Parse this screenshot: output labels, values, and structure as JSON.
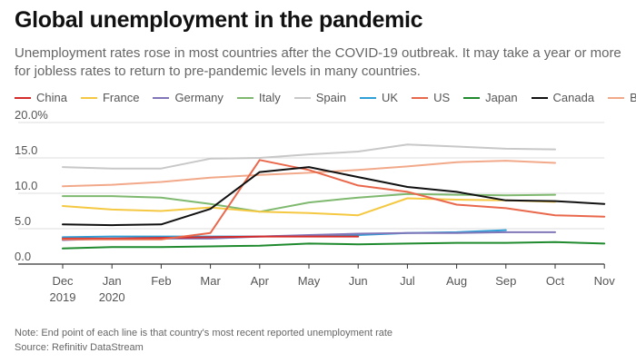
{
  "header": {
    "title": "Global unemployment in the pandemic",
    "subtitle": "Unemployment rates rose in most countries after the COVID-19 outbreak. It may take a year or more for jobless rates to return to pre-pandemic levels in many countries."
  },
  "footer": {
    "note": "Note: End point of each line is that country's most recent reported unemployment rate",
    "source": "Source: Refinitiv DataStream"
  },
  "chart_data": {
    "type": "line",
    "categories": [
      "Dec 2019",
      "Jan 2020",
      "Feb",
      "Mar",
      "Apr",
      "May",
      "Jun",
      "Jul",
      "Aug",
      "Sep",
      "Oct",
      "Nov"
    ],
    "x_tick_labels": [
      [
        "Dec",
        "2019"
      ],
      [
        "Jan",
        "2020"
      ],
      [
        "Feb"
      ],
      [
        "Mar"
      ],
      [
        "Apr"
      ],
      [
        "May"
      ],
      [
        "Jun"
      ],
      [
        "Jul"
      ],
      [
        "Aug"
      ],
      [
        "Sep"
      ],
      [
        "Oct"
      ],
      [
        "Nov"
      ]
    ],
    "y_tick_labels": [
      "0.0",
      "5.0",
      "10.0",
      "15.0",
      "20.0%"
    ],
    "ylim": [
      0,
      20
    ],
    "y_ticks": [
      0,
      5,
      10,
      15,
      20
    ],
    "grid": "horizontal",
    "legend_position": "top",
    "xlabel": "",
    "ylabel": "",
    "series": [
      {
        "name": "China",
        "color": "#d42b2b",
        "values": [
          3.6,
          3.6,
          3.7,
          3.8,
          3.9,
          3.9,
          3.9,
          null,
          null,
          null,
          null,
          null
        ]
      },
      {
        "name": "France",
        "color": "#f5c842",
        "values": [
          8.2,
          7.7,
          7.5,
          8.0,
          7.4,
          7.2,
          6.9,
          9.3,
          9.1,
          9.0,
          8.8,
          null
        ]
      },
      {
        "name": "Germany",
        "color": "#8076b8",
        "values": [
          3.4,
          3.6,
          3.6,
          3.6,
          3.9,
          4.1,
          4.3,
          4.4,
          4.4,
          4.5,
          4.5,
          null
        ]
      },
      {
        "name": "Italy",
        "color": "#7fb96f",
        "values": [
          9.6,
          9.6,
          9.4,
          8.5,
          7.4,
          8.7,
          9.4,
          9.9,
          9.8,
          9.7,
          9.8,
          null
        ]
      },
      {
        "name": "Spain",
        "color": "#c8c8c8",
        "values": [
          13.7,
          13.5,
          13.5,
          14.9,
          15.0,
          15.5,
          15.9,
          16.9,
          16.6,
          16.3,
          16.2,
          null
        ]
      },
      {
        "name": "UK",
        "color": "#2f9fd8",
        "values": [
          3.8,
          3.9,
          3.9,
          3.9,
          3.9,
          4.0,
          4.1,
          4.4,
          4.5,
          4.8,
          null,
          null
        ]
      },
      {
        "name": "US",
        "color": "#e9684c",
        "values": [
          3.5,
          3.5,
          3.5,
          4.4,
          14.7,
          13.3,
          11.1,
          10.2,
          8.4,
          7.9,
          6.9,
          6.7
        ]
      },
      {
        "name": "Japan",
        "color": "#1f8a2e",
        "values": [
          2.2,
          2.4,
          2.4,
          2.5,
          2.6,
          2.9,
          2.8,
          2.9,
          3.0,
          3.0,
          3.1,
          2.9
        ]
      },
      {
        "name": "Canada",
        "color": "#111111",
        "values": [
          5.6,
          5.5,
          5.6,
          7.8,
          13.0,
          13.7,
          12.3,
          10.9,
          10.2,
          9.0,
          8.9,
          8.5
        ]
      },
      {
        "name": "Brazil",
        "color": "#f2a98a",
        "values": [
          11.0,
          11.2,
          11.6,
          12.2,
          12.6,
          12.9,
          13.3,
          13.8,
          14.4,
          14.6,
          14.3,
          null
        ]
      }
    ]
  }
}
